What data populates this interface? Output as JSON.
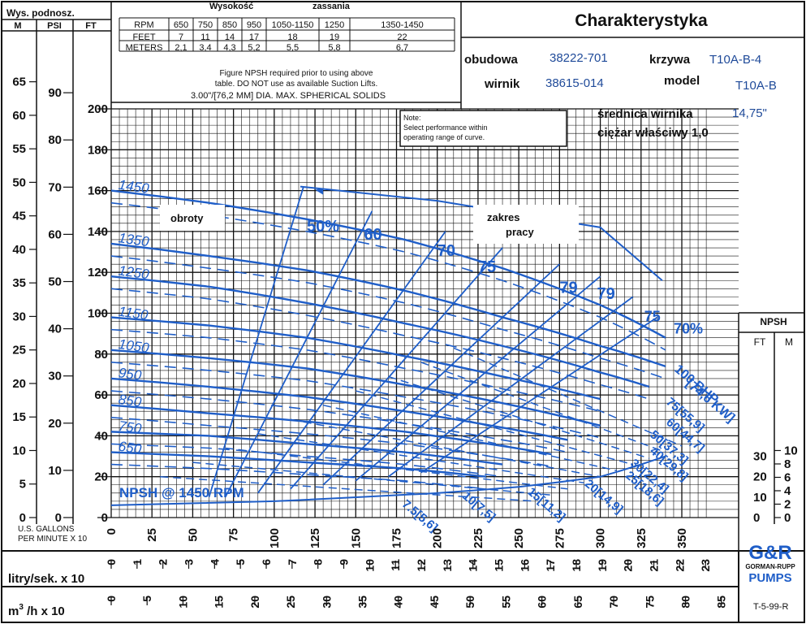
{
  "title": "Charakterystyka",
  "info": {
    "obudowa_label": "obudowa",
    "obudowa_value": "38222-701",
    "krzywa_label": "krzywa",
    "krzywa_value": "T10A-B-4",
    "wirnik_label": "wirnik",
    "wirnik_value": "38615-014",
    "model_label": "model",
    "model_value": "T10A-B",
    "srednica_label": "średnica wirnika",
    "srednica_value": "14,75\"",
    "ciezar_label": "ciężar właściwy 1,0"
  },
  "left_header": {
    "title": "Wys. podnosz.",
    "units": [
      "M",
      "PSI",
      "FT"
    ]
  },
  "suction_table": {
    "title_left": "Wysokość",
    "title_right": "zassania",
    "rows": [
      [
        "RPM",
        "650",
        "750",
        "850",
        "950",
        "1050-1150",
        "1250",
        "1350-1450"
      ],
      [
        "FEET",
        "7",
        "11",
        "14",
        "17",
        "18",
        "19",
        "22"
      ],
      [
        "METERS",
        "2,1",
        "3,4",
        "4,3",
        "5,2",
        "5,5",
        "5,8",
        "6,7"
      ]
    ],
    "note_lines": [
      "Figure NPSH required prior to using above",
      "table. DO NOT use as available Suction Lifts.",
      "3.00\"/[76,2 MM] DIA. MAX. SPHERICAL SOLIDS"
    ]
  },
  "note_box": {
    "lines": [
      "Note:",
      "Select performance within",
      "operating range of curve."
    ]
  },
  "npsh_header": {
    "title": "NPSH",
    "units": [
      "FT",
      "M"
    ]
  },
  "axis_labels": {
    "gpm": [
      "U.S. GALLONS",
      "PER MINUTE  X 10"
    ],
    "litres": "litry/sek. x 10",
    "m3h_prefix": "m",
    "m3h_sup": "3",
    "m3h_suffix": " /h x 10",
    "ref": "T-5-99-R"
  },
  "logo": {
    "mark": "G&R",
    "line1": "GORMAN-RUPP",
    "line2": "PUMPS"
  },
  "colors": {
    "curve": "#1f5ec8",
    "grid": "#111111"
  },
  "chart_data": {
    "type": "line",
    "title": "Charakterystyka",
    "x_axis": {
      "label": "U.S. GALLONS PER MINUTE X 10",
      "range": [
        0,
        365
      ],
      "ticks": [
        0,
        25,
        50,
        75,
        100,
        125,
        150,
        175,
        200,
        225,
        250,
        275,
        300,
        325,
        350
      ]
    },
    "y_axis": {
      "label": "FT",
      "range": [
        0,
        200
      ],
      "ticks": [
        0,
        20,
        40,
        60,
        80,
        100,
        120,
        140,
        160,
        180,
        200
      ]
    },
    "secondary_axes": {
      "psi_ticks": [
        0,
        10,
        20,
        30,
        40,
        50,
        60,
        70,
        80,
        90
      ],
      "meters_ticks": [
        0,
        5,
        10,
        15,
        20,
        25,
        30,
        35,
        40,
        45,
        50,
        55,
        60,
        65
      ],
      "npsh_ft_ticks": [
        0,
        10,
        20,
        30
      ],
      "npsh_m_ticks": [
        0,
        2,
        4,
        6,
        8,
        10
      ],
      "litres_ticks": [
        0,
        1,
        2,
        3,
        4,
        5,
        6,
        7,
        8,
        9,
        10,
        11,
        12,
        13,
        14,
        15,
        16,
        17,
        18,
        19,
        20,
        21,
        22,
        23
      ],
      "m3h_ticks": [
        0,
        5,
        10,
        15,
        20,
        25,
        30,
        35,
        40,
        45,
        50,
        55,
        60,
        65,
        70,
        75,
        80,
        85
      ]
    },
    "grid": true,
    "series": [
      {
        "name": "1450",
        "x": [
          0,
          60,
          120,
          180,
          240,
          300,
          340
        ],
        "y": [
          160,
          154,
          146,
          136,
          122,
          104,
          88
        ]
      },
      {
        "name": "1350",
        "x": [
          0,
          60,
          120,
          180,
          240,
          300,
          340
        ],
        "y": [
          134,
          128,
          121,
          111,
          98,
          84,
          74
        ]
      },
      {
        "name": "1250",
        "x": [
          0,
          60,
          120,
          180,
          240,
          300,
          330
        ],
        "y": [
          118,
          113,
          105,
          95,
          84,
          71,
          64
        ]
      },
      {
        "name": "1150",
        "x": [
          0,
          60,
          120,
          180,
          240,
          300
        ],
        "y": [
          98,
          94,
          88,
          79,
          69,
          58
        ]
      },
      {
        "name": "1050",
        "x": [
          0,
          60,
          120,
          180,
          240,
          300
        ],
        "y": [
          82,
          78,
          73,
          65,
          56,
          45
        ]
      },
      {
        "name": "950",
        "x": [
          0,
          60,
          120,
          180,
          240,
          280
        ],
        "y": [
          68,
          64,
          59,
          52,
          44,
          38
        ]
      },
      {
        "name": "850",
        "x": [
          0,
          60,
          120,
          180,
          240,
          270
        ],
        "y": [
          55,
          51,
          47,
          42,
          35,
          31
        ]
      },
      {
        "name": "750",
        "x": [
          0,
          60,
          120,
          180,
          240
        ],
        "y": [
          42,
          40,
          36,
          32,
          26
        ]
      },
      {
        "name": "650",
        "x": [
          0,
          60,
          120,
          180,
          230
        ],
        "y": [
          32,
          30,
          27,
          24,
          20
        ]
      },
      {
        "name": "NPSH @ 1450 RPM",
        "x": [
          0,
          100,
          200,
          250,
          300,
          340
        ],
        "y": [
          6,
          8,
          12,
          15,
          20,
          30
        ]
      }
    ],
    "annotations": [
      "obroty",
      "zakres",
      "pracy",
      "50%",
      "60",
      "70",
      "75",
      "79",
      "79",
      "75",
      "70%",
      "100 BHP",
      "[74,6 KW]",
      "75[55,9]",
      "60[44,7]",
      "50[37,3]",
      "40[29,8]",
      "30[22,4]",
      "25[18,6]",
      "20[14,9]",
      "15[11,2]",
      "10[7,5]",
      "7.5[5,6]",
      "NPSH @ 1450 RPM"
    ]
  }
}
